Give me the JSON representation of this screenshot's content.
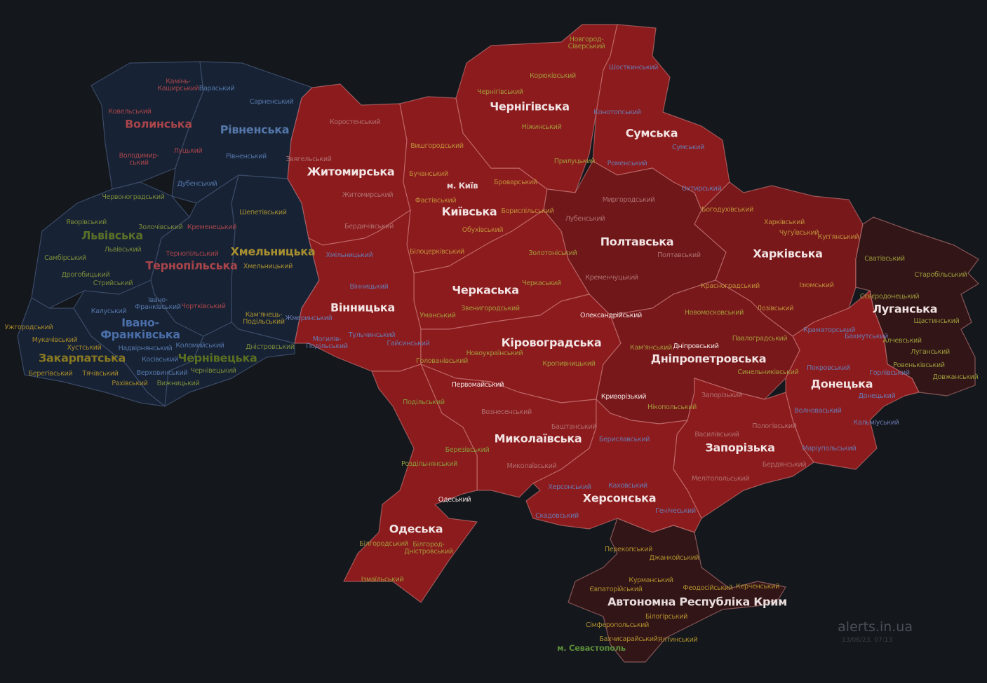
{
  "colors": {
    "background": "#14171c",
    "no_alert": "#172234",
    "alert": "#8c1b1d",
    "alert_dark": "#78181a",
    "alert_darker": "#6f1719",
    "occupied": "#321517",
    "border_alert": "#d98a8a",
    "border_calm": "#3a4a66"
  },
  "regions": [
    {
      "name": "Волинська",
      "status": "no_alert",
      "label_color": "#a8454a",
      "districts": [
        {
          "name": "Камінь-\nКаширський"
        },
        {
          "name": "Ковельський"
        },
        {
          "name": "Володимир-\nський"
        },
        {
          "name": "Луцький"
        }
      ]
    },
    {
      "name": "Рівненська",
      "status": "no_alert",
      "label_color": "#5577aa",
      "districts": [
        {
          "name": "Вараський"
        },
        {
          "name": "Сарненський"
        },
        {
          "name": "Рівненський"
        },
        {
          "name": "Дубенський"
        }
      ]
    },
    {
      "name": "Львівська",
      "status": "no_alert",
      "label_color": "#5a7028",
      "district_color": "#7a8a3a",
      "districts": [
        {
          "name": "Червоноградський"
        },
        {
          "name": "Яворівський"
        },
        {
          "name": "Золочівський"
        },
        {
          "name": "Львівський"
        },
        {
          "name": "Самбірський"
        },
        {
          "name": "Дрогобицький"
        },
        {
          "name": "Стрийський"
        }
      ]
    },
    {
      "name": "Тернопільська",
      "status": "no_alert",
      "label_color": "#a8454a",
      "districts": [
        {
          "name": "Кременецький"
        },
        {
          "name": "Тернопільський"
        },
        {
          "name": "Чортківський"
        }
      ]
    },
    {
      "name": "Хмельницька",
      "status": "no_alert",
      "label_color": "#a89030",
      "districts": [
        {
          "name": "Шепетівський"
        },
        {
          "name": "Хмельницький"
        },
        {
          "name": "Кам'янець-\nПодільський"
        }
      ]
    },
    {
      "name": "Івано-\nФранківська",
      "status": "no_alert",
      "label_color": "#4a6ea8",
      "district_color": "#5577aa",
      "districts": [
        {
          "name": "Калуський"
        },
        {
          "name": "Івано-\nФранківський"
        },
        {
          "name": "Коломийський"
        },
        {
          "name": "Надвірнянський"
        },
        {
          "name": "Косівський"
        },
        {
          "name": "Верховинський"
        }
      ]
    },
    {
      "name": "Закарпатська",
      "status": "no_alert",
      "label_color": "#8a7a22",
      "district_color": "#a88a2a",
      "districts": [
        {
          "name": "Ужгородський"
        },
        {
          "name": "Мукачівський"
        },
        {
          "name": "Хустський"
        },
        {
          "name": "Берегівський"
        },
        {
          "name": "Тячівський"
        },
        {
          "name": "Рахівський"
        }
      ]
    },
    {
      "name": "Чернівецька",
      "status": "no_alert",
      "label_color": "#5a7020",
      "district_color": "#7a8a3a",
      "districts": [
        {
          "name": "Дністровський"
        },
        {
          "name": "Чернівецький"
        },
        {
          "name": "Вижницький"
        }
      ]
    },
    {
      "name": "Житомирська",
      "status": "alert",
      "label_color": "#f2e4e4",
      "district_color": "#b07070",
      "districts": [
        {
          "name": "Коростенський"
        },
        {
          "name": "Звягельський"
        },
        {
          "name": "Житомирський"
        },
        {
          "name": "Бердичівський"
        }
      ]
    },
    {
      "name": "Київська",
      "status": "alert",
      "label_color": "#f2e4e4",
      "district_color": "#c0903a",
      "districts": [
        {
          "name": "Вишгородський"
        },
        {
          "name": "Бучанський"
        },
        {
          "name": "Фастівський"
        },
        {
          "name": "Броварський"
        },
        {
          "name": "Бориспільський"
        },
        {
          "name": "Обухівський"
        },
        {
          "name": "Білоцерківський"
        },
        {
          "name": "м. Київ",
          "color": "#ead6d6"
        }
      ]
    },
    {
      "name": "Чернігівська",
      "status": "alert",
      "label_color": "#f2e4e4",
      "district_color": "#a49a3a",
      "districts": [
        {
          "name": "Новгород-\nСіверський"
        },
        {
          "name": "Корюківський"
        },
        {
          "name": "Чернігівський"
        },
        {
          "name": "Ніжинський"
        },
        {
          "name": "Прилуцький"
        }
      ]
    },
    {
      "name": "Сумська",
      "status": "alert",
      "label_color": "#f2e4e4",
      "district_color": "#6a7ab0",
      "districts": [
        {
          "name": "Шосткинський"
        },
        {
          "name": "Конотопський"
        },
        {
          "name": "Сумський"
        },
        {
          "name": "Роменський"
        },
        {
          "name": "Охтирський"
        }
      ]
    },
    {
      "name": "Полтавська",
      "status": "alert_darker",
      "label_color": "#f2e4e4",
      "district_color": "#b07070",
      "districts": [
        {
          "name": "Миргородський"
        },
        {
          "name": "Лубенський"
        },
        {
          "name": "Полтавський"
        },
        {
          "name": "Кременчуцький"
        }
      ]
    },
    {
      "name": "Харківська",
      "status": "alert_dark",
      "label_color": "#f2e4e4",
      "district_color": "#c0903a",
      "districts": [
        {
          "name": "Богодухівський"
        },
        {
          "name": "Харківський"
        },
        {
          "name": "Чугуївський"
        },
        {
          "name": "Куп'янський"
        },
        {
          "name": "Красноградський"
        },
        {
          "name": "Ізюмський"
        },
        {
          "name": "Лозівський"
        }
      ]
    },
    {
      "name": "Луганська",
      "status": "occupied",
      "label_color": "#f2e4e4",
      "district_color": "#9a9a3a",
      "districts": [
        {
          "name": "Сватівський"
        },
        {
          "name": "Старобільський"
        },
        {
          "name": "Сєвєродонецький"
        },
        {
          "name": "Щастинський"
        },
        {
          "name": "Алчевський"
        },
        {
          "name": "Луганський"
        },
        {
          "name": "Ровеньківський"
        },
        {
          "name": "Довжанський"
        }
      ]
    },
    {
      "name": "Донецька",
      "status": "alert",
      "label_color": "#f2e4e4",
      "district_color": "#6a7ab0",
      "districts": [
        {
          "name": "Краматорський"
        },
        {
          "name": "Бахмутський"
        },
        {
          "name": "Покровський"
        },
        {
          "name": "Горлівський"
        },
        {
          "name": "Донецький"
        },
        {
          "name": "Волноваський"
        },
        {
          "name": "Кальміуський"
        },
        {
          "name": "Маріупольський"
        }
      ]
    },
    {
      "name": "Черкаська",
      "status": "alert",
      "label_color": "#f2e4e4",
      "district_color": "#a49a3a",
      "districts": [
        {
          "name": "Золотоніський"
        },
        {
          "name": "Черкаський"
        },
        {
          "name": "Звенигородський"
        },
        {
          "name": "Уманський"
        }
      ]
    },
    {
      "name": "Вінницька",
      "status": "alert",
      "label_color": "#f2e4e4",
      "district_color": "#6a7ab0",
      "districts": [
        {
          "name": "Хмільницький"
        },
        {
          "name": "Вінницький"
        },
        {
          "name": "Жмеринський"
        },
        {
          "name": "Могилів-\nПодільський"
        },
        {
          "name": "Тульчинський"
        },
        {
          "name": "Гайсинський"
        }
      ]
    },
    {
      "name": "Кіровоградська",
      "status": "alert",
      "label_color": "#f2e4e4",
      "district_color": "#a49a3a",
      "districts": [
        {
          "name": "Олександрійський",
          "color": "#f2e4e4"
        },
        {
          "name": "Новоукраїнський"
        },
        {
          "name": "Голованівський"
        },
        {
          "name": "Кропивницький"
        }
      ]
    },
    {
      "name": "Дніпропетровська",
      "status": "alert_dark",
      "label_color": "#f2e4e4",
      "district_color": "#a49a3a",
      "districts": [
        {
          "name": "Новомосковський"
        },
        {
          "name": "Павлоградський"
        },
        {
          "name": "Кам'янський"
        },
        {
          "name": "Дніпровський",
          "color": "#f2e4e4"
        },
        {
          "name": "Синельниківський"
        },
        {
          "name": "Криворізький",
          "color": "#f2e4e4"
        },
        {
          "name": "Нікопольський"
        }
      ]
    },
    {
      "name": "Запорізька",
      "status": "alert",
      "label_color": "#f2e4e4",
      "district_color": "#b07070",
      "districts": [
        {
          "name": "Запорізький"
        },
        {
          "name": "Пологівський"
        },
        {
          "name": "Василівський"
        },
        {
          "name": "Бердянський"
        },
        {
          "name": "Мелітопольський"
        }
      ]
    },
    {
      "name": "Миколаївська",
      "status": "alert",
      "label_color": "#f2e4e4",
      "district_color": "#b07070",
      "districts": [
        {
          "name": "Первомайський",
          "color": "#f2e4e4"
        },
        {
          "name": "Вознесенський"
        },
        {
          "name": "Баштанський"
        },
        {
          "name": "Миколаївський"
        }
      ]
    },
    {
      "name": "Херсонська",
      "status": "alert",
      "label_color": "#f2e4e4",
      "district_color": "#6a7ab0",
      "districts": [
        {
          "name": "Бериславський"
        },
        {
          "name": "Херсонський"
        },
        {
          "name": "Каховський"
        },
        {
          "name": "Скадовський"
        },
        {
          "name": "Генічеський"
        }
      ]
    },
    {
      "name": "Одеська",
      "status": "alert",
      "label_color": "#f2e4e4",
      "district_color": "#8a9a3a",
      "districts": [
        {
          "name": "Подільський"
        },
        {
          "name": "Березівський"
        },
        {
          "name": "Роздільнянський"
        },
        {
          "name": "Одеський",
          "color": "#f2e4e4"
        },
        {
          "name": "Білгородський",
          "color": "#a49a3a"
        },
        {
          "name": "Білгород-\nДністровський",
          "color": "#a49a3a"
        },
        {
          "name": "Ізмаїльський",
          "color": "#a49a3a"
        }
      ]
    },
    {
      "name": "Автономна Республіка Крим",
      "status": "occupied",
      "label_color": "#e8dcdc",
      "district_color": "#b0902e",
      "districts": [
        {
          "name": "Перекопський"
        },
        {
          "name": "Джанкойський"
        },
        {
          "name": "Курманський"
        },
        {
          "name": "Євпаторійський"
        },
        {
          "name": "Феодосійський"
        },
        {
          "name": "Керченський"
        },
        {
          "name": "Білогірський"
        },
        {
          "name": "Сімферопольський"
        },
        {
          "name": "Бахчисарайський"
        },
        {
          "name": "Ялтинський"
        },
        {
          "name": "м. Севастополь",
          "color": "#5a8a3a"
        }
      ]
    }
  ],
  "watermark": {
    "site": "alerts.in.ua",
    "timestamp": "13/06/23, 07:13"
  }
}
